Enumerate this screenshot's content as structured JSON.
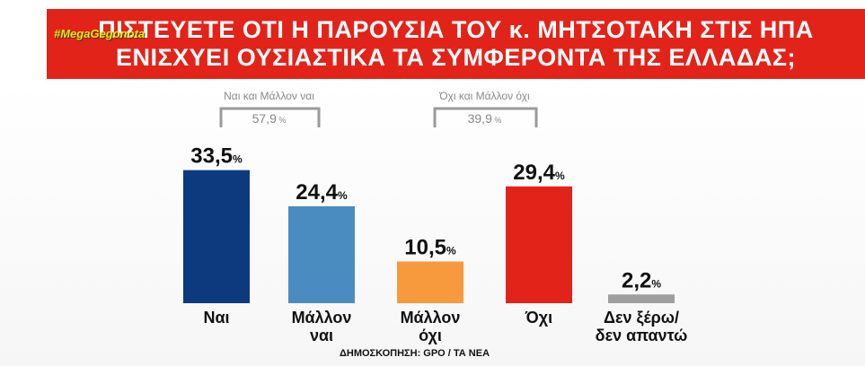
{
  "header": {
    "hashtag": "#MegaGegonota",
    "title_line1": "ΠΙΣΤΕΥΕΤΕ ΟΤΙ Η ΠΑΡΟΥΣΙΑ ΤΟΥ κ. ΜΗΤΣΟΤΑΚΗ ΣΤΙΣ ΗΠΑ",
    "title_line2": "ΕΝΙΣΧΥΕΙ ΟΥΣΙΑΣΤΙΚΑ ΤΑ ΣΥΜΦΕΡΟΝΤΑ ΤΗΣ ΕΛΛΑΔΑΣ;"
  },
  "source": "ΔΗΜΟΣΚΟΠΗΣΗ: GPO / ΤΑ ΝΕΑ",
  "colors": {
    "banner": "#e2231a",
    "nai": "#0d3a7e",
    "mallon_nai": "#4a8cc0",
    "mallon_oxi": "#f79a3e",
    "oxi": "#e2231a",
    "dk": "#9e9e9e",
    "bracket": "#9a9a9a"
  },
  "chart_data": {
    "type": "bar",
    "categories": [
      "Ναι",
      "Μάλλον ναι",
      "Μάλλον όχι",
      "Όχι",
      "Δεν ξέρω/ δεν απαντώ"
    ],
    "category_lines": [
      [
        "Ναι"
      ],
      [
        "Μάλλον",
        "ναι"
      ],
      [
        "Μάλλον",
        "όχι"
      ],
      [
        "Όχι"
      ],
      [
        "Δεν ξέρω/",
        "δεν απαντώ"
      ]
    ],
    "values": [
      33.5,
      24.4,
      10.5,
      29.4,
      2.2
    ],
    "value_labels": [
      "33,5",
      "24,4",
      "10,5",
      "29,4",
      "2,2"
    ],
    "unit": "%",
    "ylim": [
      0,
      35
    ],
    "groups": [
      {
        "label": "Ναι και Μάλλον ναι",
        "value": "57,9",
        "bars": [
          0,
          1
        ]
      },
      {
        "label": "Όχι και Μάλλον όχι",
        "value": "39,9",
        "bars": [
          2,
          3
        ]
      }
    ]
  }
}
